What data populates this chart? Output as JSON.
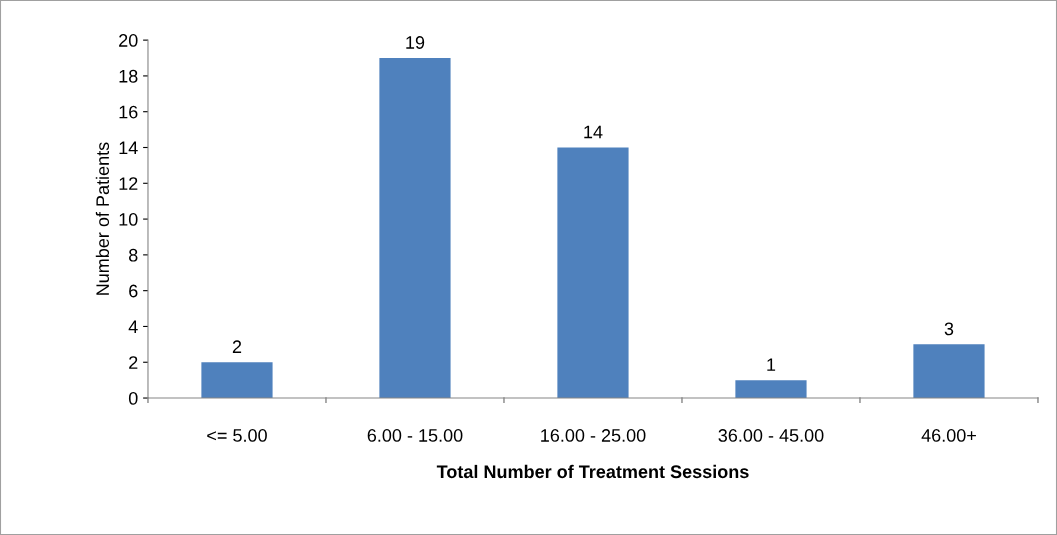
{
  "chart_data": {
    "type": "bar",
    "xlabel": "Total Number of Treatment Sessions",
    "ylabel": "Number of Patients",
    "categories": [
      "<= 5.00",
      "6.00 - 15.00",
      "16.00 - 25.00",
      "36.00 - 45.00",
      "46.00+"
    ],
    "values": [
      2,
      19,
      14,
      1,
      3
    ],
    "color": "#4f81bd",
    "ylim": [
      0,
      20
    ],
    "yticks": [
      0,
      2,
      4,
      6,
      8,
      10,
      12,
      14,
      16,
      18,
      20
    ],
    "grid": false,
    "legend": false,
    "data_labels": true
  }
}
